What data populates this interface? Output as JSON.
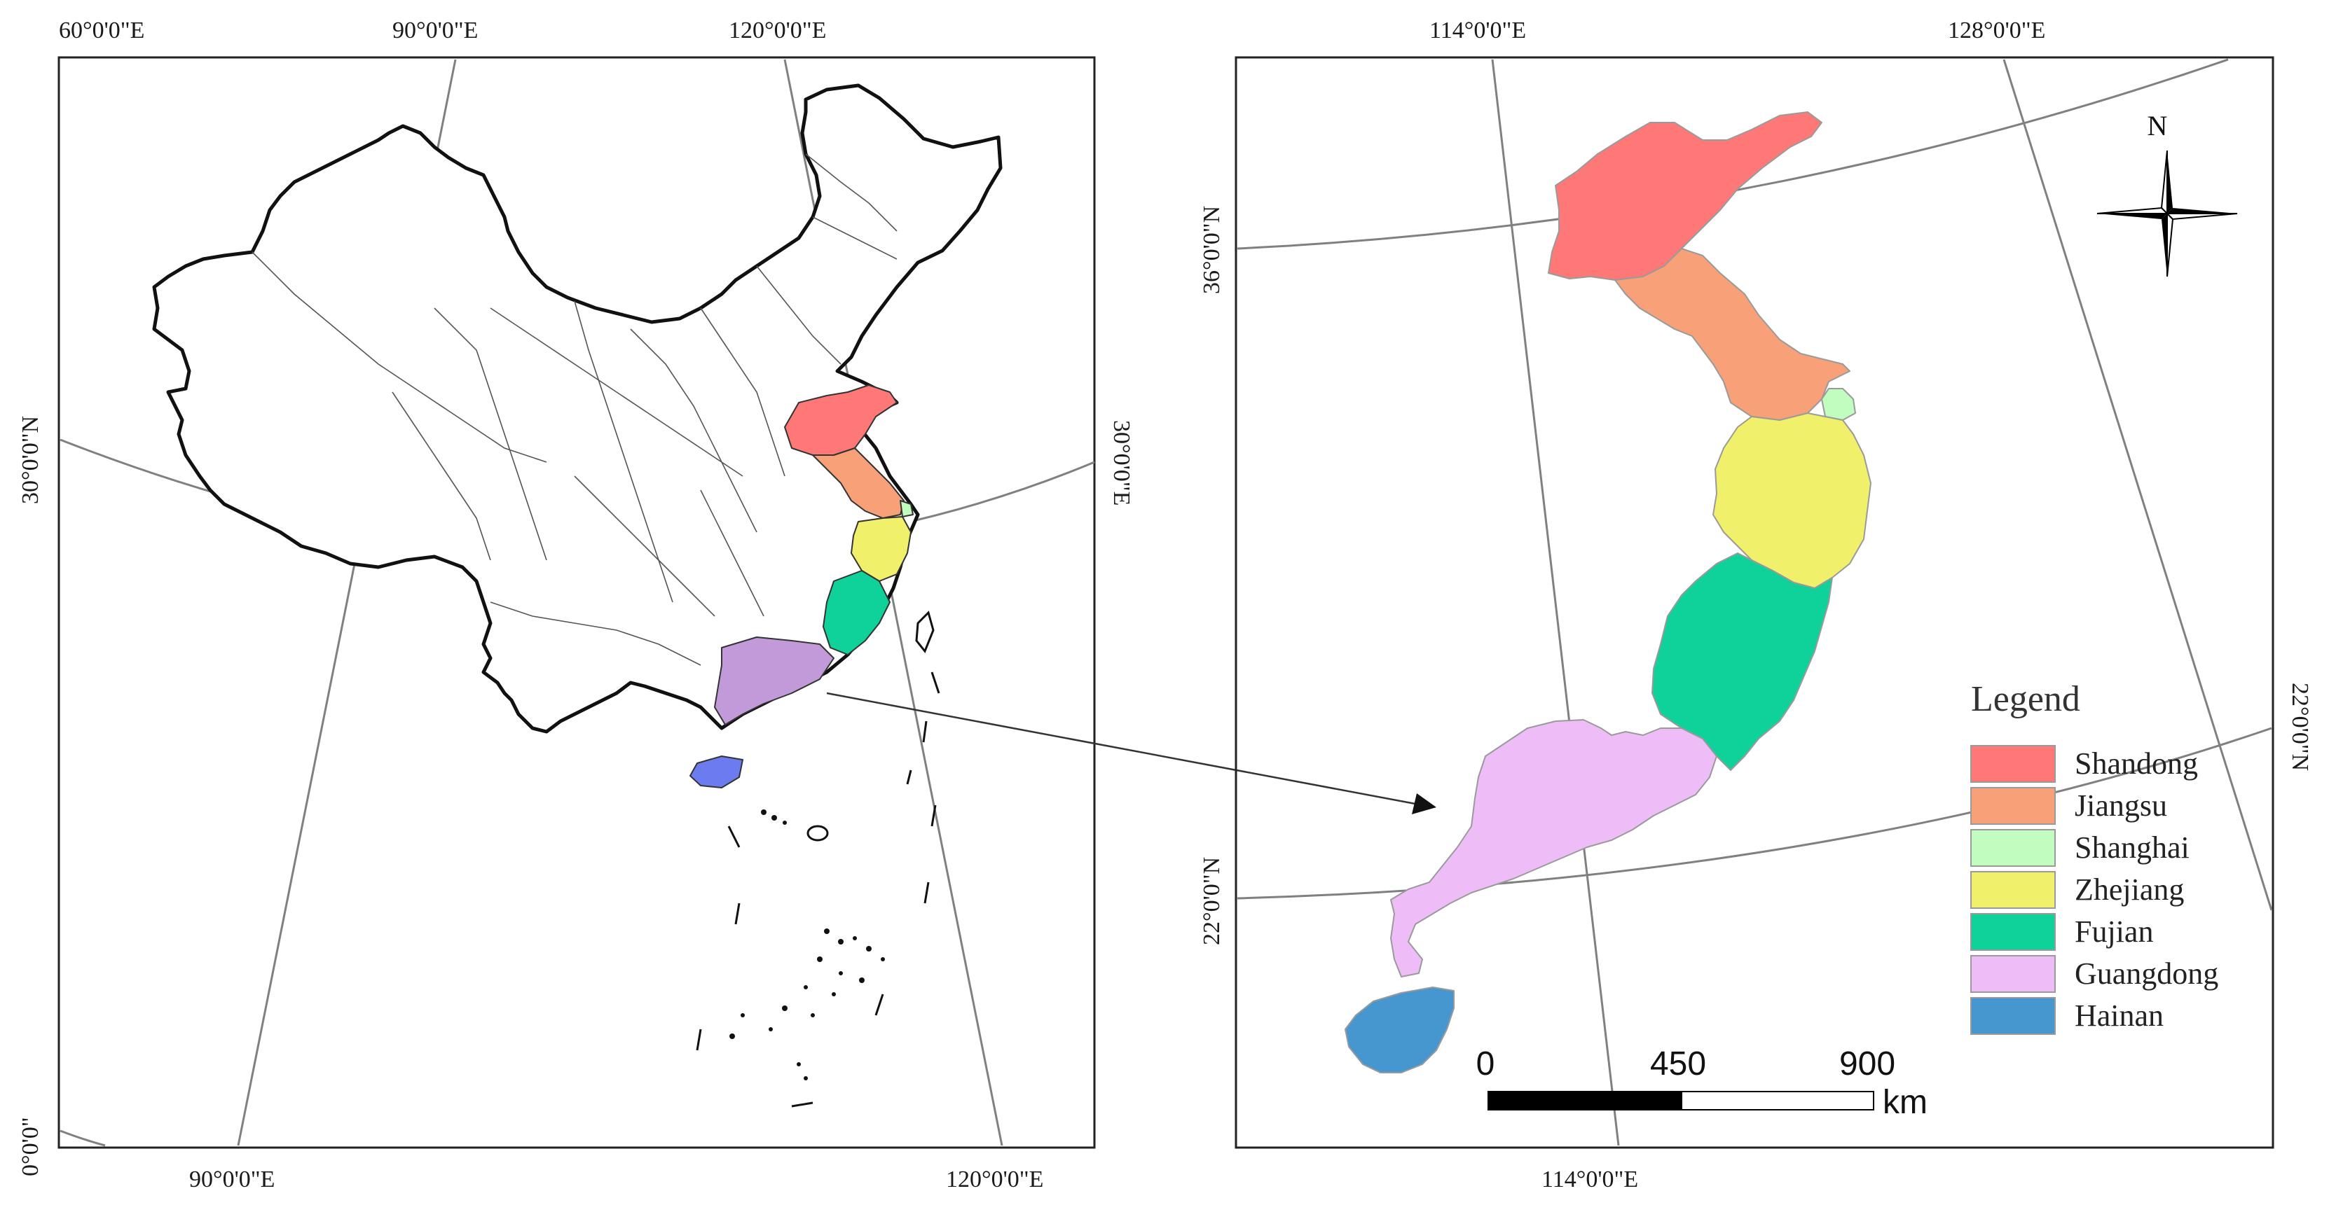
{
  "colors": {
    "Shandong": "#fe7877",
    "Jiangsu": "#f8a077",
    "Shanghai": "#c2fdc0",
    "Zhejiang": "#f1f06a",
    "Fujian": "#0fd29a",
    "Guangdong": "#eebdf8",
    "Guangdong_left": "#c29ad9",
    "Hainan": "#4696cf",
    "Hainan_left": "#6c7cf0",
    "graticule": "#808080"
  },
  "left_map": {
    "top_labels": [
      "60°0'0\"E",
      "90°0'0\"E",
      "120°0'0\"E"
    ],
    "bottom_labels": [
      "90°0'0\"E",
      "120°0'0\"E"
    ],
    "left_labels": [
      "30°0'0\"N",
      "0°0'0\""
    ],
    "right_labels": [
      "30°0'0\"E"
    ]
  },
  "right_map": {
    "top_labels": [
      "114°0'0\"E",
      "128°0'0\"E"
    ],
    "bottom_labels": [
      "114°0'0\"E"
    ],
    "left_labels": [
      "36°0'0\"N",
      "22°0'0\"N"
    ],
    "right_labels": [
      "22°0'0\"N"
    ],
    "north_arrow": {
      "label": "N",
      "icon": "compass-rose-icon"
    },
    "scale_bar": {
      "ticks": [
        "0",
        "450",
        "900"
      ],
      "unit": "km"
    },
    "legend": {
      "title": "Legend",
      "items": [
        {
          "label": "Shandong",
          "color": "#fe7877"
        },
        {
          "label": "Jiangsu",
          "color": "#f8a077"
        },
        {
          "label": "Shanghai",
          "color": "#c2fdc0"
        },
        {
          "label": "Zhejiang",
          "color": "#f1f06a"
        },
        {
          "label": "Fujian",
          "color": "#0fd29a"
        },
        {
          "label": "Guangdong",
          "color": "#eebdf8"
        },
        {
          "label": "Hainan",
          "color": "#4696cf"
        }
      ]
    }
  }
}
